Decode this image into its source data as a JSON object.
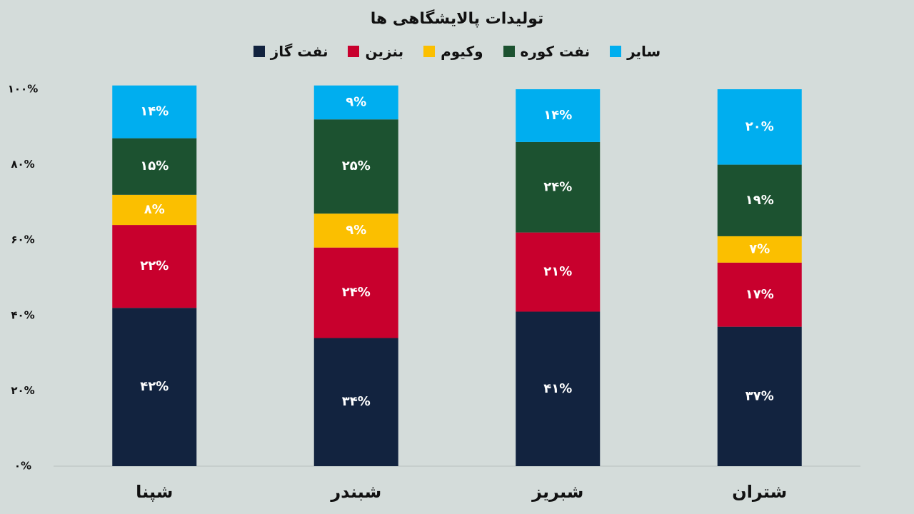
{
  "chart_data": {
    "type": "stacked_bar",
    "title": "تولیدات پالایشگاهی ها",
    "categories": [
      "شپنا",
      "شبندر",
      "شبریز",
      "شتران"
    ],
    "series": [
      {
        "name": "نفت گاز",
        "color": "#12233f",
        "values": [
          42,
          34,
          41,
          37
        ],
        "value_labels": [
          "۴۲%",
          "۳۴%",
          "۴۱%",
          "۳۷%"
        ]
      },
      {
        "name": "بنزین",
        "color": "#c8002d",
        "values": [
          22,
          24,
          21,
          17
        ],
        "value_labels": [
          "۲۲%",
          "۲۴%",
          "۲۱%",
          "۱۷%"
        ]
      },
      {
        "name": "وکیوم",
        "color": "#fbbf00",
        "values": [
          8,
          9,
          0,
          7
        ],
        "value_labels": [
          "۸%",
          "۹%",
          null,
          "۷%"
        ]
      },
      {
        "name": "نفت کوره",
        "color": "#1c5230",
        "values": [
          15,
          25,
          24,
          19
        ],
        "value_labels": [
          "۱۵%",
          "۲۵%",
          "۲۴%",
          "۱۹%"
        ]
      },
      {
        "name": "سایر",
        "color": "#00aeef",
        "values": [
          14,
          9,
          14,
          20
        ],
        "value_labels": [
          "۱۴%",
          "۹%",
          "۱۴%",
          "۲۰%"
        ]
      }
    ],
    "ylim": [
      0,
      100
    ],
    "yticks": [
      {
        "value": 0,
        "label": "۰%"
      },
      {
        "value": 20,
        "label": "۲۰%"
      },
      {
        "value": 40,
        "label": "۴۰%"
      },
      {
        "value": 60,
        "label": "۶۰%"
      },
      {
        "value": 80,
        "label": "۸۰%"
      },
      {
        "value": 100,
        "label": "۱۰۰%"
      }
    ],
    "grid": false
  }
}
